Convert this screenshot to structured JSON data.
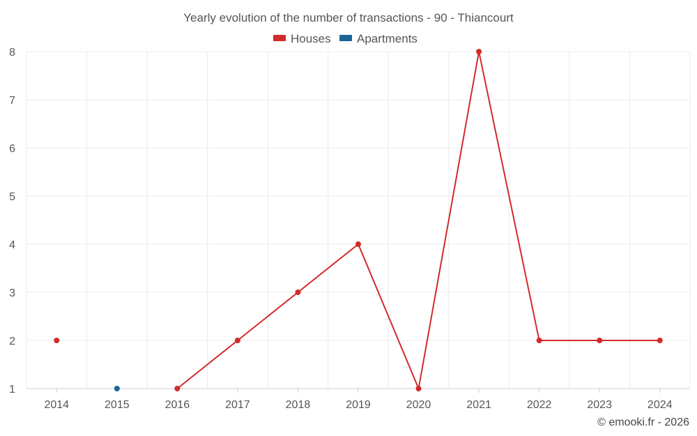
{
  "chart_data": {
    "type": "line",
    "title": "Yearly evolution of the number of transactions - 90 - Thiancourt",
    "categories": [
      "2014",
      "2015",
      "2016",
      "2017",
      "2018",
      "2019",
      "2020",
      "2021",
      "2022",
      "2023",
      "2024"
    ],
    "series": [
      {
        "name": "Houses",
        "color": "#d32a2a",
        "values": [
          2,
          null,
          1,
          2,
          3,
          4,
          1,
          8,
          2,
          2,
          2
        ]
      },
      {
        "name": "Apartments",
        "color": "#1a6496",
        "values": [
          null,
          1,
          null,
          null,
          null,
          null,
          null,
          null,
          null,
          null,
          null
        ]
      }
    ],
    "ylim": [
      1,
      8
    ],
    "yticks": [
      1,
      2,
      3,
      4,
      5,
      6,
      7,
      8
    ],
    "grid": true,
    "legend_position": "top-center"
  },
  "credit": "© emooki.fr - 2026"
}
